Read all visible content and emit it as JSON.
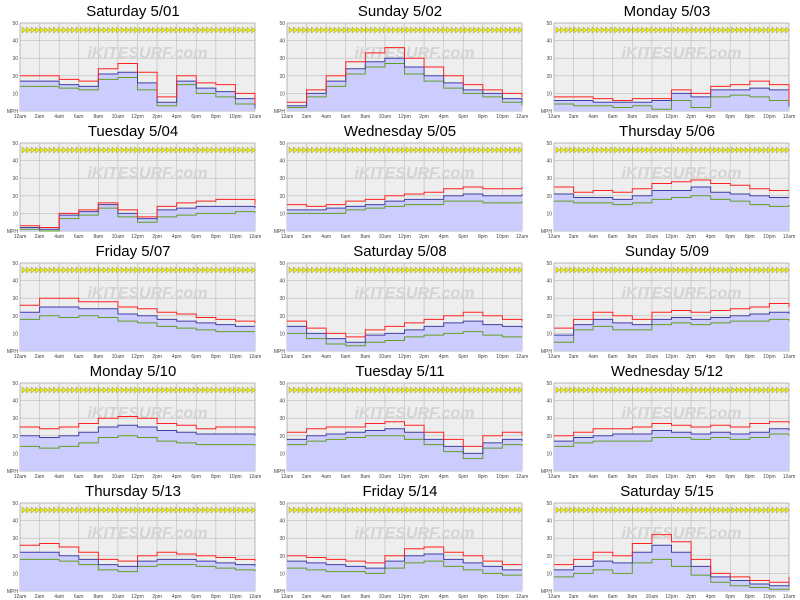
{
  "watermark": "iKITESURF.com",
  "colors": {
    "gust": "#ff2020",
    "avg": "#4040a0",
    "lull": "#60a020",
    "fill": "#ccccff",
    "direction": "#f0f000",
    "plot_bg": "#eeeeee"
  },
  "y_ticks": [
    "50",
    "40",
    "30",
    "20",
    "10",
    "MPH"
  ],
  "x_ticks": [
    "12am",
    "2am",
    "4am",
    "6am",
    "8am",
    "10am",
    "12pm",
    "2pm",
    "4pm",
    "6pm",
    "8pm",
    "10pm",
    "12am"
  ],
  "chart_data": [
    {
      "type": "line",
      "title": "Saturday 5/01",
      "ylim": [
        0,
        50
      ],
      "series": [
        {
          "name": "gust",
          "values": [
            20,
            20,
            18,
            17,
            24,
            27,
            22,
            8,
            20,
            16,
            15,
            10,
            4
          ]
        },
        {
          "name": "avg",
          "values": [
            17,
            17,
            15,
            14,
            21,
            22,
            16,
            5,
            17,
            13,
            11,
            7,
            2
          ]
        },
        {
          "name": "lull",
          "values": [
            14,
            14,
            13,
            12,
            18,
            19,
            12,
            3,
            15,
            10,
            8,
            4,
            1
          ]
        }
      ]
    },
    {
      "type": "line",
      "title": "Sunday 5/02",
      "ylim": [
        0,
        50
      ],
      "series": [
        {
          "name": "gust",
          "values": [
            5,
            12,
            20,
            28,
            33,
            36,
            30,
            25,
            20,
            15,
            12,
            10,
            8
          ]
        },
        {
          "name": "avg",
          "values": [
            3,
            10,
            17,
            24,
            28,
            30,
            25,
            20,
            16,
            12,
            10,
            7,
            5
          ]
        },
        {
          "name": "lull",
          "values": [
            2,
            8,
            14,
            21,
            25,
            27,
            21,
            17,
            13,
            10,
            8,
            5,
            3
          ]
        }
      ]
    },
    {
      "type": "line",
      "title": "Monday 5/03",
      "ylim": [
        0,
        50
      ],
      "series": [
        {
          "name": "gust",
          "values": [
            8,
            8,
            7,
            6,
            7,
            7,
            12,
            10,
            14,
            15,
            17,
            15,
            5
          ]
        },
        {
          "name": "avg",
          "values": [
            6,
            6,
            5,
            5,
            5,
            6,
            10,
            8,
            12,
            12,
            13,
            12,
            3
          ]
        },
        {
          "name": "lull",
          "values": [
            4,
            3,
            3,
            2,
            3,
            1,
            6,
            2,
            8,
            9,
            8,
            6,
            2
          ]
        }
      ]
    },
    {
      "type": "line",
      "title": "Tuesday 5/04",
      "ylim": [
        0,
        50
      ],
      "series": [
        {
          "name": "gust",
          "values": [
            3,
            2,
            10,
            12,
            16,
            12,
            8,
            14,
            16,
            17,
            18,
            18,
            15
          ]
        },
        {
          "name": "avg",
          "values": [
            2,
            1,
            9,
            11,
            15,
            10,
            7,
            12,
            13,
            14,
            14,
            14,
            13
          ]
        },
        {
          "name": "lull",
          "values": [
            1,
            0,
            7,
            9,
            13,
            8,
            5,
            8,
            9,
            10,
            10,
            11,
            10
          ]
        }
      ]
    },
    {
      "type": "line",
      "title": "Wednesday 5/05",
      "ylim": [
        0,
        50
      ],
      "series": [
        {
          "name": "gust",
          "values": [
            15,
            14,
            15,
            17,
            18,
            20,
            21,
            22,
            24,
            25,
            24,
            24,
            25
          ]
        },
        {
          "name": "avg",
          "values": [
            12,
            12,
            13,
            14,
            15,
            17,
            18,
            18,
            20,
            21,
            20,
            20,
            21
          ]
        },
        {
          "name": "lull",
          "values": [
            10,
            10,
            10,
            12,
            13,
            14,
            15,
            15,
            17,
            17,
            16,
            16,
            17
          ]
        }
      ]
    },
    {
      "type": "line",
      "title": "Thursday 5/06",
      "ylim": [
        0,
        50
      ],
      "series": [
        {
          "name": "gust",
          "values": [
            25,
            22,
            23,
            22,
            24,
            27,
            28,
            29,
            27,
            26,
            24,
            23,
            23
          ]
        },
        {
          "name": "avg",
          "values": [
            21,
            19,
            19,
            18,
            20,
            23,
            23,
            25,
            22,
            21,
            20,
            19,
            19
          ]
        },
        {
          "name": "lull",
          "values": [
            17,
            16,
            16,
            15,
            16,
            18,
            19,
            20,
            18,
            17,
            15,
            14,
            15
          ]
        }
      ]
    },
    {
      "type": "line",
      "title": "Friday 5/07",
      "ylim": [
        0,
        50
      ],
      "series": [
        {
          "name": "gust",
          "values": [
            26,
            30,
            30,
            28,
            28,
            25,
            24,
            22,
            21,
            19,
            18,
            17,
            16
          ]
        },
        {
          "name": "avg",
          "values": [
            22,
            25,
            25,
            24,
            24,
            21,
            20,
            18,
            17,
            16,
            15,
            14,
            14
          ]
        },
        {
          "name": "lull",
          "values": [
            18,
            20,
            19,
            20,
            19,
            17,
            16,
            14,
            13,
            12,
            11,
            11,
            11
          ]
        }
      ]
    },
    {
      "type": "line",
      "title": "Saturday 5/08",
      "ylim": [
        0,
        50
      ],
      "series": [
        {
          "name": "gust",
          "values": [
            17,
            13,
            10,
            8,
            12,
            14,
            16,
            18,
            20,
            22,
            20,
            18,
            17
          ]
        },
        {
          "name": "avg",
          "values": [
            14,
            10,
            7,
            5,
            9,
            10,
            12,
            14,
            16,
            17,
            15,
            14,
            13
          ]
        },
        {
          "name": "lull",
          "values": [
            10,
            7,
            4,
            3,
            5,
            6,
            8,
            9,
            10,
            11,
            9,
            8,
            8
          ]
        }
      ]
    },
    {
      "type": "line",
      "title": "Sunday 5/09",
      "ylim": [
        0,
        50
      ],
      "series": [
        {
          "name": "gust",
          "values": [
            13,
            18,
            22,
            20,
            18,
            22,
            23,
            22,
            23,
            24,
            25,
            27,
            25
          ]
        },
        {
          "name": "avg",
          "values": [
            9,
            15,
            18,
            16,
            15,
            18,
            19,
            18,
            19,
            20,
            21,
            22,
            21
          ]
        },
        {
          "name": "lull",
          "values": [
            5,
            12,
            14,
            12,
            12,
            15,
            16,
            15,
            16,
            17,
            17,
            18,
            17
          ]
        }
      ]
    },
    {
      "type": "line",
      "title": "Monday 5/10",
      "ylim": [
        0,
        50
      ],
      "series": [
        {
          "name": "gust",
          "values": [
            25,
            24,
            25,
            27,
            30,
            31,
            30,
            27,
            26,
            24,
            25,
            25,
            24
          ]
        },
        {
          "name": "avg",
          "values": [
            20,
            19,
            20,
            22,
            25,
            26,
            25,
            23,
            22,
            21,
            21,
            21,
            20
          ]
        },
        {
          "name": "lull",
          "values": [
            14,
            13,
            14,
            16,
            19,
            20,
            19,
            17,
            16,
            15,
            15,
            15,
            14
          ]
        }
      ]
    },
    {
      "type": "line",
      "title": "Tuesday 5/11",
      "ylim": [
        0,
        50
      ],
      "series": [
        {
          "name": "gust",
          "values": [
            22,
            24,
            25,
            25,
            27,
            28,
            26,
            22,
            18,
            14,
            20,
            22,
            20
          ]
        },
        {
          "name": "avg",
          "values": [
            18,
            20,
            21,
            22,
            23,
            24,
            22,
            18,
            14,
            10,
            16,
            18,
            17
          ]
        },
        {
          "name": "lull",
          "values": [
            15,
            17,
            18,
            19,
            20,
            20,
            18,
            15,
            11,
            7,
            13,
            15,
            14
          ]
        }
      ]
    },
    {
      "type": "line",
      "title": "Wednesday 5/12",
      "ylim": [
        0,
        50
      ],
      "series": [
        {
          "name": "gust",
          "values": [
            20,
            22,
            24,
            24,
            25,
            27,
            26,
            25,
            26,
            25,
            27,
            28,
            27
          ]
        },
        {
          "name": "avg",
          "values": [
            17,
            19,
            20,
            21,
            21,
            23,
            22,
            21,
            22,
            21,
            22,
            24,
            23
          ]
        },
        {
          "name": "lull",
          "values": [
            14,
            16,
            17,
            17,
            17,
            19,
            19,
            18,
            19,
            18,
            19,
            21,
            20
          ]
        }
      ]
    },
    {
      "type": "line",
      "title": "Thursday 5/13",
      "ylim": [
        0,
        50
      ],
      "series": [
        {
          "name": "gust",
          "values": [
            26,
            27,
            25,
            22,
            18,
            17,
            20,
            22,
            21,
            20,
            19,
            18,
            17
          ]
        },
        {
          "name": "avg",
          "values": [
            22,
            22,
            20,
            18,
            15,
            14,
            17,
            18,
            18,
            17,
            16,
            15,
            14
          ]
        },
        {
          "name": "lull",
          "values": [
            18,
            18,
            17,
            15,
            12,
            11,
            14,
            15,
            15,
            14,
            13,
            12,
            11
          ]
        }
      ]
    },
    {
      "type": "line",
      "title": "Friday 5/14",
      "ylim": [
        0,
        50
      ],
      "series": [
        {
          "name": "gust",
          "values": [
            20,
            19,
            18,
            17,
            16,
            20,
            24,
            25,
            22,
            20,
            17,
            15,
            null
          ]
        },
        {
          "name": "avg",
          "values": [
            17,
            16,
            15,
            14,
            13,
            17,
            20,
            21,
            18,
            16,
            14,
            12,
            null
          ]
        },
        {
          "name": "lull",
          "values": [
            13,
            12,
            11,
            11,
            10,
            13,
            16,
            17,
            14,
            12,
            10,
            9,
            null
          ]
        }
      ]
    },
    {
      "type": "line",
      "title": "Saturday 5/15",
      "ylim": [
        0,
        50
      ],
      "series": [
        {
          "name": "gust",
          "values": [
            15,
            18,
            22,
            20,
            27,
            32,
            28,
            18,
            10,
            8,
            6,
            5,
            8
          ]
        },
        {
          "name": "avg",
          "values": [
            12,
            14,
            17,
            16,
            22,
            26,
            22,
            14,
            8,
            6,
            4,
            3,
            5
          ]
        },
        {
          "name": "lull",
          "values": [
            8,
            10,
            12,
            10,
            16,
            18,
            14,
            9,
            5,
            3,
            2,
            1,
            3
          ]
        }
      ]
    }
  ]
}
